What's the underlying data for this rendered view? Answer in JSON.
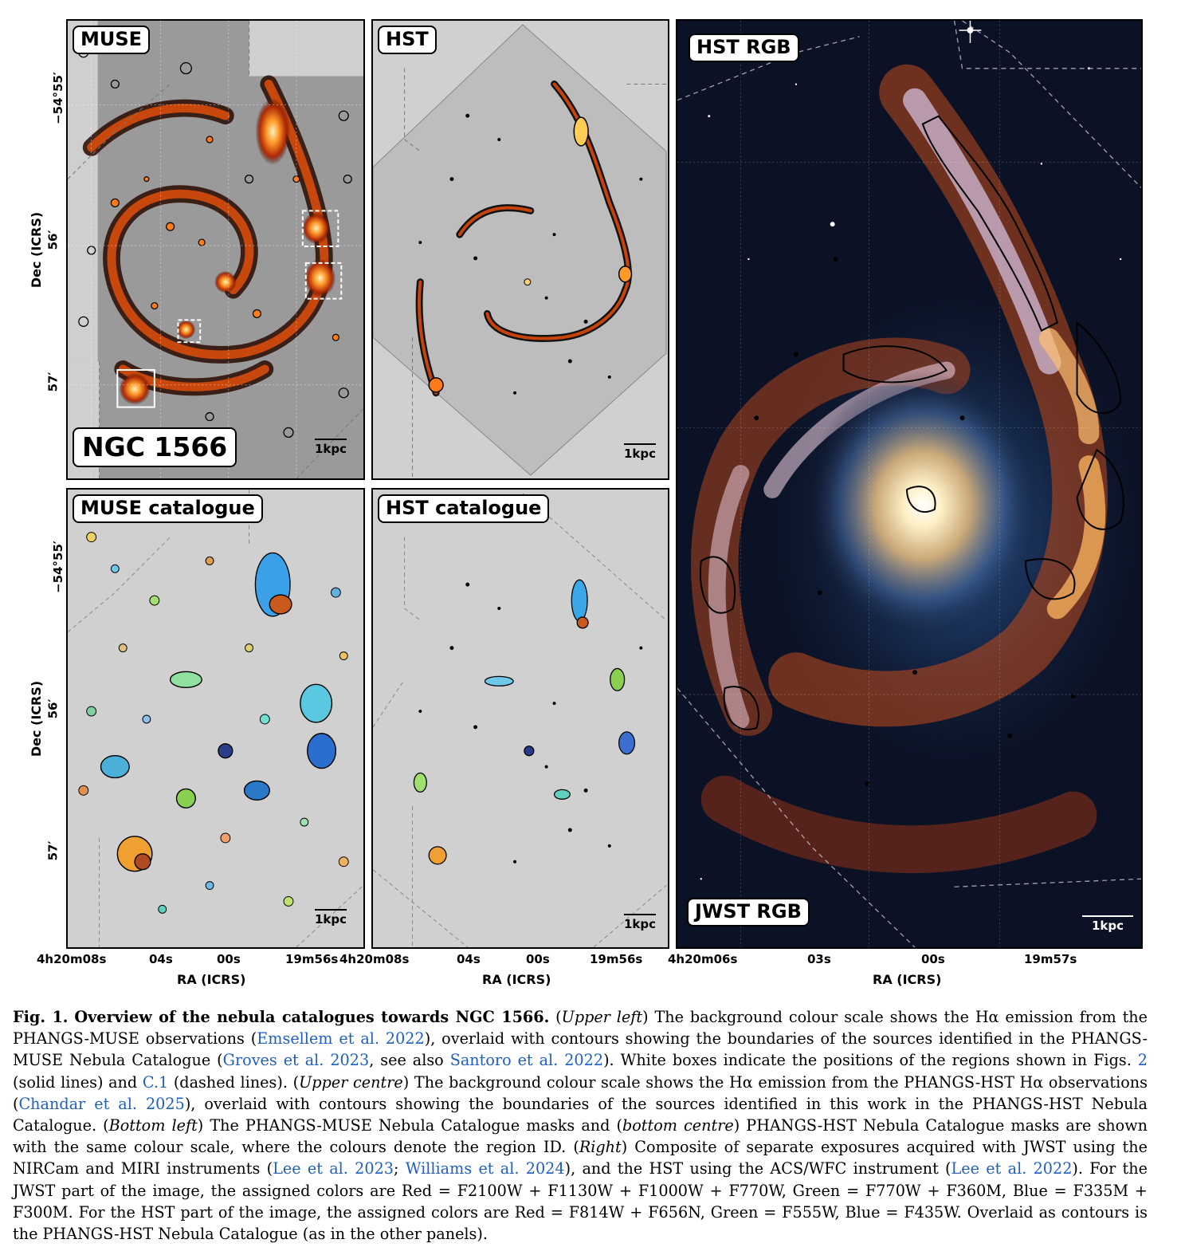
{
  "panels": {
    "muse": {
      "label": "MUSE",
      "galaxy": "NGC 1566",
      "scale": "1kpc"
    },
    "hst": {
      "label": "HST",
      "scale": "1kpc"
    },
    "rgb": {
      "label_top": "HST RGB",
      "label_bottom": "JWST RGB",
      "scale": "1kpc"
    },
    "muse_cat": {
      "label": "MUSE catalogue",
      "scale": "1kpc"
    },
    "hst_cat": {
      "label": "HST catalogue",
      "scale": "1kpc"
    }
  },
  "axes": {
    "dec_title": "Dec (ICRS)",
    "ra_title": "RA (ICRS)",
    "dec_ticks": [
      "−54°55′",
      "56′",
      "57′"
    ],
    "ra_ticks_left": [
      "4h20m08s",
      "04s",
      "00s",
      "19m56s"
    ],
    "ra_ticks_center": [
      "4h20m08s",
      "04s",
      "00s",
      "19m56s"
    ],
    "ra_ticks_right": [
      "4h20m06s",
      "03s",
      "00s",
      "19m57s"
    ]
  },
  "caption": {
    "fig": "Fig. 1.",
    "title": "Overview of the nebula catalogues towards NGC 1566.",
    "upper_left": "Upper left",
    "t1": "The background colour scale shows the Hα emission from the PHANGS-MUSE observations (",
    "c1": "Emsellem et al. 2022",
    "t2": "), overlaid with contours showing the boundaries of the sources identified in the PHANGS-MUSE Nebula Catalogue (",
    "c2": "Groves et al. 2023",
    "t3": ", see also ",
    "c3": "Santoro et al. 2022",
    "t4": "). White boxes indicate the positions of the regions shown in Figs. ",
    "c4": "2",
    "t5": " (solid lines) and ",
    "c5": "C.1",
    "t6": " (dashed lines). (",
    "upper_centre": "Upper centre",
    "t7": ") The background colour scale shows the Hα emission from the PHANGS-HST Hα observations (",
    "c6": "Chandar et al. 2025",
    "t8": "), overlaid with contours showing the boundaries of the sources identified in this work in the PHANGS-HST Nebula Catalogue. (",
    "bottom_left": "Bottom left",
    "t9": ") The PHANGS-MUSE Nebula Catalogue masks and (",
    "bottom_centre": "bottom centre",
    "t10": ") PHANGS-HST Nebula Catalogue masks are shown with the same colour scale, where the colours denote the region ID. (",
    "right": "Right",
    "t11": ") Composite of separate exposures acquired with JWST using the NIRCam and MIRI instruments (",
    "c7": "Lee et al. 2023",
    "t12": "; ",
    "c8": "Williams et al. 2024",
    "t13": "), and the HST using the ACS/WFC instrument (",
    "c9": "Lee et al. 2022",
    "t14": "). For the JWST part of the image, the assigned colors are Red = F2100W + F1130W + F1000W + F770W, Green = F770W + F360M, Blue = F335M + F300M. For the HST part of the image, the assigned colors are Red = F814W + F656N, Green = F555W, Blue = F435W. Overlaid as contours is the PHANGS-HST Nebula Catalogue (as in the other panels)."
  }
}
